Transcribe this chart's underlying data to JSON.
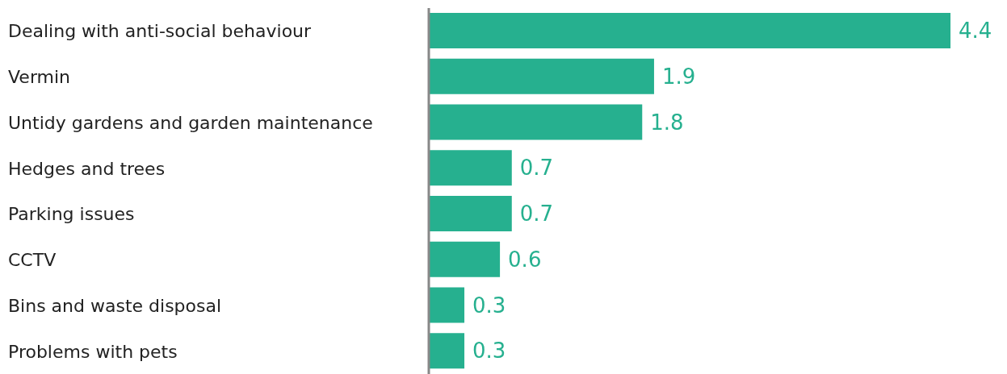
{
  "chart_data": {
    "type": "bar",
    "orientation": "horizontal",
    "categories": [
      "Dealing with anti-social behaviour",
      "Vermin",
      "Untidy gardens and garden maintenance",
      "Hedges and trees",
      "Parking issues",
      "CCTV",
      "Bins and waste disposal",
      "Problems with pets"
    ],
    "values": [
      4.4,
      1.9,
      1.8,
      0.7,
      0.7,
      0.6,
      0.3,
      0.3
    ],
    "color": "#26b08f",
    "data_labels": true,
    "tick_labels": "y"
  }
}
